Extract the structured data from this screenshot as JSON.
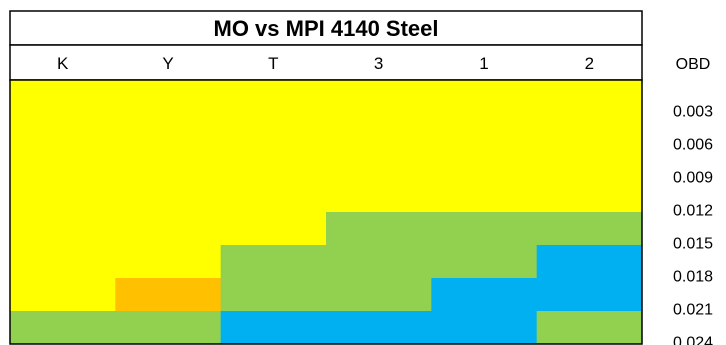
{
  "chart_data": {
    "type": "heatmap",
    "title": "MO vs MPI 4140 Steel",
    "columns": [
      "K",
      "Y",
      "T",
      "3",
      "1",
      "2"
    ],
    "row_header": "OBD",
    "rows": [
      "0.003",
      "0.006",
      "0.009",
      "0.012",
      "0.015",
      "0.018",
      "0.021",
      "0.024"
    ],
    "colors": {
      "Y": "#FFFF00",
      "O": "#FFC000",
      "G": "#92D050",
      "B": "#00B0F0"
    },
    "cells": [
      [
        "Y",
        "Y",
        "Y",
        "Y",
        "Y",
        "Y"
      ],
      [
        "Y",
        "Y",
        "Y",
        "Y",
        "Y",
        "Y"
      ],
      [
        "Y",
        "Y",
        "Y",
        "Y",
        "Y",
        "Y"
      ],
      [
        "Y",
        "Y",
        "Y",
        "Y",
        "Y",
        "Y"
      ],
      [
        "Y",
        "Y",
        "Y",
        "G",
        "G",
        "G"
      ],
      [
        "Y",
        "Y",
        "G",
        "G",
        "G",
        "B"
      ],
      [
        "Y",
        "O",
        "G",
        "G",
        "B",
        "B"
      ],
      [
        "G",
        "G",
        "B",
        "B",
        "B",
        "G"
      ]
    ]
  }
}
